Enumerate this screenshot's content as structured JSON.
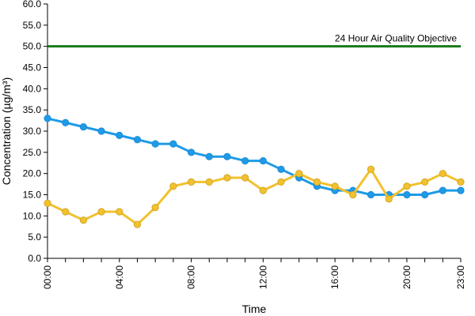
{
  "chart_data": {
    "type": "line",
    "xlabel": "Time",
    "ylabel": "Concentration (µg/m³)",
    "ylim": [
      0,
      60
    ],
    "y_ticks": [
      "0.0",
      "5.0",
      "10.0",
      "15.0",
      "20.0",
      "25.0",
      "30.0",
      "35.0",
      "40.0",
      "45.0",
      "50.0",
      "55.0",
      "60.0"
    ],
    "x": [
      "00:00",
      "01:00",
      "02:00",
      "03:00",
      "04:00",
      "05:00",
      "06:00",
      "07:00",
      "08:00",
      "09:00",
      "10:00",
      "11:00",
      "12:00",
      "13:00",
      "14:00",
      "15:00",
      "16:00",
      "17:00",
      "18:00",
      "19:00",
      "20:00",
      "21:00",
      "22:00",
      "23:00"
    ],
    "x_tick_labels": [
      "00:00",
      "04:00",
      "08:00",
      "12:00",
      "16:00",
      "20:00",
      "23:00"
    ],
    "x_tick_indices": [
      0,
      4,
      8,
      12,
      16,
      20,
      23
    ],
    "grid": false,
    "reference_line": {
      "label": "24 Hour Air Quality Objective",
      "value": 50,
      "color": "#1a7a1a"
    },
    "series": [
      {
        "color": "#1e9be8",
        "values": [
          33,
          32,
          31,
          30,
          29,
          28,
          27,
          27,
          25,
          24,
          24,
          23,
          23,
          21,
          19,
          17,
          16,
          16,
          15,
          15,
          15,
          15,
          16,
          16
        ]
      },
      {
        "color": "#f2c12e",
        "values": [
          13,
          11,
          9,
          11,
          11,
          8,
          12,
          17,
          18,
          18,
          19,
          19,
          16,
          18,
          20,
          18,
          17,
          15,
          21,
          14,
          17,
          18,
          20,
          18
        ]
      }
    ]
  }
}
